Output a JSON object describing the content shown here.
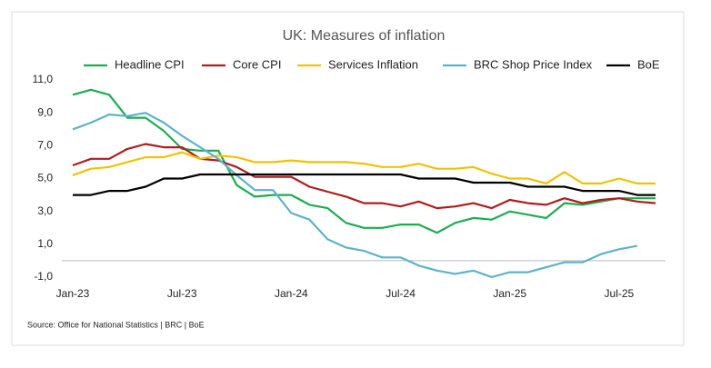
{
  "chart_data": {
    "type": "line",
    "title": "UK: Measures of inflation",
    "source": "Source: Office for National Statistics | BRC | BoE",
    "categories": [
      "Jan-23",
      null,
      null,
      null,
      null,
      null,
      "Jul-23",
      null,
      null,
      null,
      null,
      null,
      "Jan-24",
      null,
      null,
      null,
      null,
      null,
      "Jul-24",
      null,
      null,
      null,
      null,
      null,
      "Jan-25",
      null,
      null,
      null,
      null,
      null,
      "Jul-25",
      null,
      null
    ],
    "series": [
      {
        "name": "Headline CPI",
        "color": "#1aae4f",
        "values": [
          10.1,
          10.4,
          10.1,
          8.7,
          8.7,
          7.9,
          6.8,
          6.7,
          6.7,
          4.6,
          3.9,
          4.0,
          4.0,
          3.4,
          3.2,
          2.3,
          2.0,
          2.0,
          2.2,
          2.2,
          1.7,
          2.3,
          2.6,
          2.5,
          3.0,
          2.8,
          2.6,
          3.5,
          3.4,
          3.6,
          3.8,
          3.8,
          3.8
        ]
      },
      {
        "name": "Core CPI",
        "color": "#b01c1c",
        "values": [
          5.8,
          6.2,
          6.2,
          6.8,
          7.1,
          6.9,
          6.9,
          6.2,
          6.1,
          5.7,
          5.1,
          5.1,
          5.1,
          4.5,
          4.2,
          3.9,
          3.5,
          3.5,
          3.3,
          3.6,
          3.2,
          3.3,
          3.5,
          3.2,
          3.7,
          3.5,
          3.4,
          3.8,
          3.5,
          3.7,
          3.8,
          3.6,
          3.5
        ]
      },
      {
        "name": "Services Inflation",
        "color": "#f2c200",
        "values": [
          5.2,
          5.6,
          5.7,
          6.0,
          6.3,
          6.3,
          6.6,
          6.2,
          6.4,
          6.3,
          6.0,
          6.0,
          6.1,
          6.0,
          6.0,
          6.0,
          5.9,
          5.7,
          5.7,
          5.9,
          5.6,
          5.6,
          5.7,
          5.3,
          5.0,
          5.0,
          4.7,
          5.4,
          4.7,
          4.7,
          5.0,
          4.7,
          4.7
        ]
      },
      {
        "name": "BRC Shop Price Index",
        "color": "#5ab4c8",
        "values": [
          8.0,
          8.4,
          8.9,
          8.8,
          9.0,
          8.4,
          7.6,
          6.9,
          6.2,
          5.2,
          4.3,
          4.3,
          2.9,
          2.5,
          1.3,
          0.8,
          0.6,
          0.2,
          0.2,
          -0.3,
          -0.6,
          -0.8,
          -0.6,
          -1.0,
          -0.7,
          -0.7,
          -0.4,
          -0.1,
          -0.1,
          0.4,
          0.7,
          0.9,
          null
        ]
      },
      {
        "name": "BoE",
        "color": "#000000",
        "values": [
          4.0,
          4.0,
          4.25,
          4.25,
          4.5,
          5.0,
          5.0,
          5.25,
          5.25,
          5.25,
          5.25,
          5.25,
          5.25,
          5.25,
          5.25,
          5.25,
          5.25,
          5.25,
          5.25,
          5.0,
          5.0,
          5.0,
          4.75,
          4.75,
          4.75,
          4.5,
          4.5,
          4.5,
          4.25,
          4.25,
          4.25,
          4.0,
          4.0
        ]
      }
    ],
    "ylim": [
      -1,
      11
    ],
    "yticks": [
      {
        "value": -1,
        "label": "-1,0"
      },
      {
        "value": 1,
        "label": "1,0"
      },
      {
        "value": 3,
        "label": "3,0"
      },
      {
        "value": 5,
        "label": "5,0"
      },
      {
        "value": 7,
        "label": "7,0"
      },
      {
        "value": 9,
        "label": "9,0"
      },
      {
        "value": 11,
        "label": "11,0"
      }
    ],
    "grid": false
  }
}
